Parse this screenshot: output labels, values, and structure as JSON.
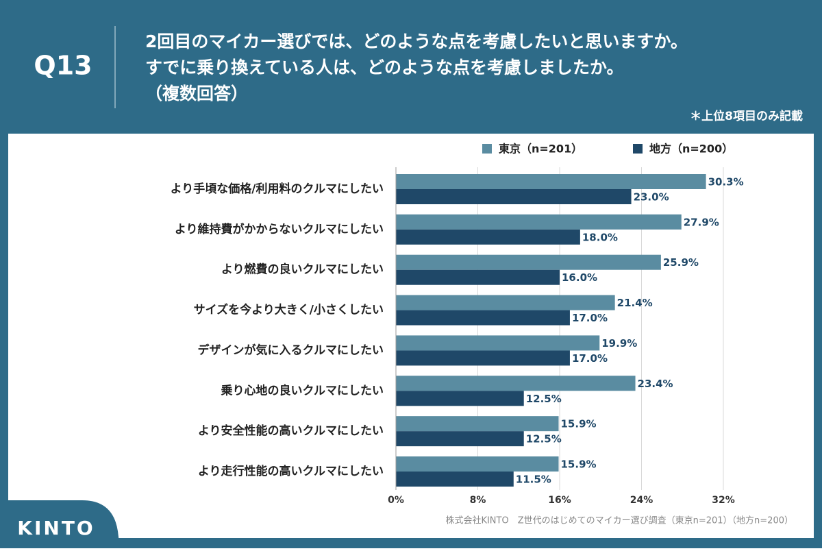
{
  "header": {
    "question": "Q13",
    "title": [
      "2回目のマイカー選びでは、どのような点を考慮したいと思いますか。",
      "すでに乗り換えている人は、どのような点を考慮しましたか。",
      "（複数回答）"
    ],
    "note": "＊上位8項目のみ記載"
  },
  "chart_data": {
    "type": "hbar",
    "categories": [
      "より手頃な価格/利用料のクルマにしたい",
      "より維持費がかからないクルマにしたい",
      "より燃費の良いクルマにしたい",
      "サイズを今より大きく/小さくしたい",
      "デザインが気に入るクルマにしたい",
      "乗り心地の良いクルマにしたい",
      "より安全性能の高いクルマにしたい",
      "より走行性能の高いクルマにしたい"
    ],
    "series": [
      {
        "name": "東京（n=201）",
        "color": "#5a8ca1",
        "values": [
          30.3,
          27.9,
          25.9,
          21.4,
          19.9,
          23.4,
          15.9,
          15.9
        ],
        "value_labels": [
          "30.3%",
          "27.9%",
          "25.9%",
          "21.4%",
          "19.9%",
          "23.4%",
          "15.9%",
          "15.9%"
        ]
      },
      {
        "name": "地方（n=200）",
        "color": "#1f4868",
        "values": [
          23.0,
          18.0,
          16.0,
          17.0,
          17.0,
          12.5,
          12.5,
          11.5
        ],
        "value_labels": [
          "23.0%",
          "18.0%",
          "16.0%",
          "17.0%",
          "17.0%",
          "12.5%",
          "12.5%",
          "11.5%"
        ]
      }
    ],
    "xlim": [
      0,
      32
    ],
    "xticks": [
      {
        "value": 0,
        "label": "0%"
      },
      {
        "value": 8,
        "label": "8%"
      },
      {
        "value": 16,
        "label": "16%"
      },
      {
        "value": 24,
        "label": "24%"
      },
      {
        "value": 32,
        "label": "32%"
      }
    ],
    "grid": true,
    "source": "株式会社KINTO　Z世代のはじめてのマイカー選び調査（東京n=201）（地方n=200）"
  },
  "logo": "KINTO"
}
